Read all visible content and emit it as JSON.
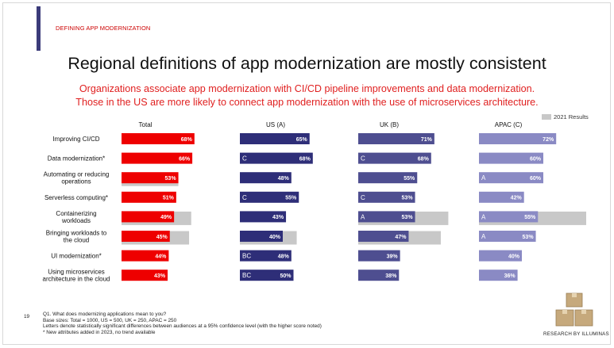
{
  "header": {
    "kicker": "DEFINING APP MODERNIZATION",
    "title": "Regional definitions of app modernization are mostly consistent",
    "subtitle_line1": "Organizations associate app modernization with CI/CD pipeline improvements and data modernization.",
    "subtitle_line2": "Those in the US are more likely to connect app modernization with the use of microservices architecture."
  },
  "legend": {
    "label": "2021 Results",
    "color": "#c8c8c8"
  },
  "colors": {
    "total": "#ee0000",
    "us": "#2e2e78",
    "uk": "#4e4e90",
    "apac": "#8a8ac4",
    "prior": "#c8c8c8"
  },
  "chart_data": {
    "type": "bar",
    "orientation": "horizontal",
    "unit": "%",
    "categories": [
      [
        "Improving CI/CD"
      ],
      [
        "Data modernization*"
      ],
      [
        "Automating or reducing",
        "operations"
      ],
      [
        "Serverless computing*"
      ],
      [
        "Containerizing",
        "workloads"
      ],
      [
        "Bringing workloads to",
        "the cloud"
      ],
      [
        "UI modernization*"
      ],
      [
        "Using microservices",
        "architecture in the cloud"
      ]
    ],
    "groups": [
      {
        "name": "Total",
        "values": [
          68,
          66,
          53,
          51,
          49,
          45,
          44,
          43
        ],
        "prior": [
          null,
          null,
          53,
          null,
          65,
          63,
          null,
          null
        ],
        "sig": [
          "",
          "",
          "",
          "",
          "",
          "",
          "",
          ""
        ]
      },
      {
        "name": "US (A)",
        "values": [
          65,
          68,
          48,
          55,
          43,
          40,
          48,
          50
        ],
        "prior": [
          null,
          null,
          null,
          null,
          null,
          53,
          null,
          null
        ],
        "sig": [
          "",
          "C",
          "",
          "C",
          "",
          "",
          "BC",
          "BC"
        ]
      },
      {
        "name": "UK (B)",
        "values": [
          71,
          68,
          55,
          53,
          53,
          47,
          39,
          38
        ],
        "prior": [
          null,
          null,
          null,
          null,
          84,
          77,
          null,
          null
        ],
        "sig": [
          "",
          "C",
          "",
          "C",
          "A",
          "",
          "",
          ""
        ]
      },
      {
        "name": "APAC (C)",
        "values": [
          72,
          60,
          60,
          42,
          55,
          53,
          40,
          36
        ],
        "prior": [
          null,
          null,
          null,
          null,
          100,
          null,
          null,
          null
        ],
        "sig": [
          "",
          "",
          "A",
          "",
          "A",
          "A",
          "",
          ""
        ]
      }
    ],
    "xlim": [
      0,
      100
    ],
    "legend_position": "top-right"
  },
  "footer": {
    "page": "19",
    "line1": "Q1. What does modernizing applications mean to you?",
    "line2": "Base sizes: Total = 1000, US = 500, UK = 250, APAC = 250",
    "line3": "Letters denote statistically significant differences between audiences at a 95% confidence level (with the higher score noted)",
    "line4": "* New attributes added in 2023, no trend available",
    "brand": "RESEARCH BY ILLUMINAS"
  }
}
